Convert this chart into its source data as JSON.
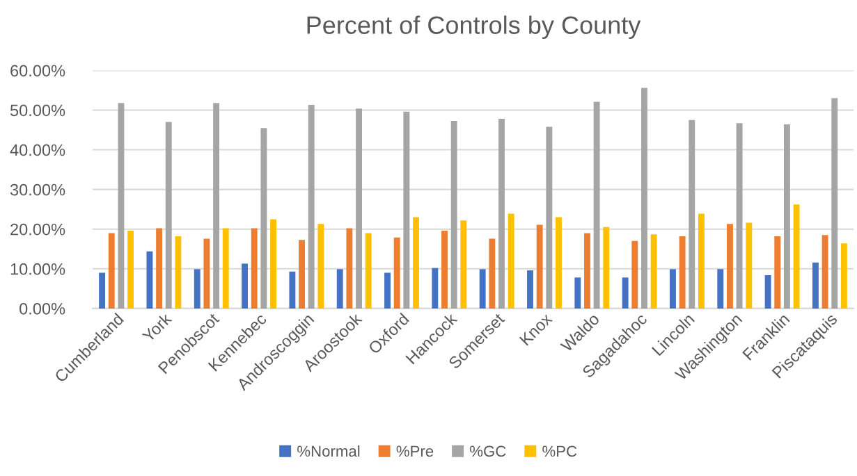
{
  "chart_data": {
    "type": "bar",
    "title": "Percent of Controls by County",
    "categories": [
      "Cumberland",
      "York",
      "Penobscot",
      "Kennebec",
      "Androscoggin",
      "Aroostook",
      "Oxford",
      "Hancock",
      "Somerset",
      "Knox",
      "Waldo",
      "Sagadahoc",
      "Lincoln",
      "Washington",
      "Franklin",
      "Piscataquis"
    ],
    "series": [
      {
        "name": "%Normal",
        "color": "#4472c4",
        "values": [
          9.0,
          14.4,
          9.9,
          11.3,
          9.3,
          9.9,
          9.0,
          10.2,
          9.9,
          9.6,
          7.8,
          7.8,
          9.9,
          9.9,
          8.4,
          11.6
        ]
      },
      {
        "name": "%Pre",
        "color": "#ed7d31",
        "values": [
          19.0,
          20.2,
          17.6,
          20.2,
          17.3,
          20.2,
          17.9,
          19.6,
          17.6,
          21.1,
          19.0,
          17.0,
          18.2,
          21.3,
          18.2,
          18.5
        ]
      },
      {
        "name": "%GC",
        "color": "#a5a5a5",
        "values": [
          51.8,
          47.0,
          51.8,
          45.5,
          51.3,
          50.4,
          49.6,
          47.3,
          47.8,
          45.8,
          52.1,
          55.6,
          47.5,
          46.7,
          46.4,
          53.0
        ]
      },
      {
        "name": "%PC",
        "color": "#ffc000",
        "values": [
          19.6,
          18.2,
          20.2,
          22.5,
          21.3,
          19.0,
          23.0,
          22.2,
          23.9,
          23.0,
          20.5,
          18.7,
          23.9,
          21.6,
          26.2,
          16.4
        ]
      }
    ],
    "ylim": [
      0,
      60
    ],
    "yticks": [
      {
        "value": 0,
        "label": "0.00%"
      },
      {
        "value": 10,
        "label": "10.00%"
      },
      {
        "value": 20,
        "label": "20.00%"
      },
      {
        "value": 30,
        "label": "30.00%"
      },
      {
        "value": 40,
        "label": "40.00%"
      },
      {
        "value": 50,
        "label": "50.00%"
      },
      {
        "value": 60,
        "label": "60.00%"
      }
    ],
    "grid": "y",
    "legend": "bottom"
  }
}
